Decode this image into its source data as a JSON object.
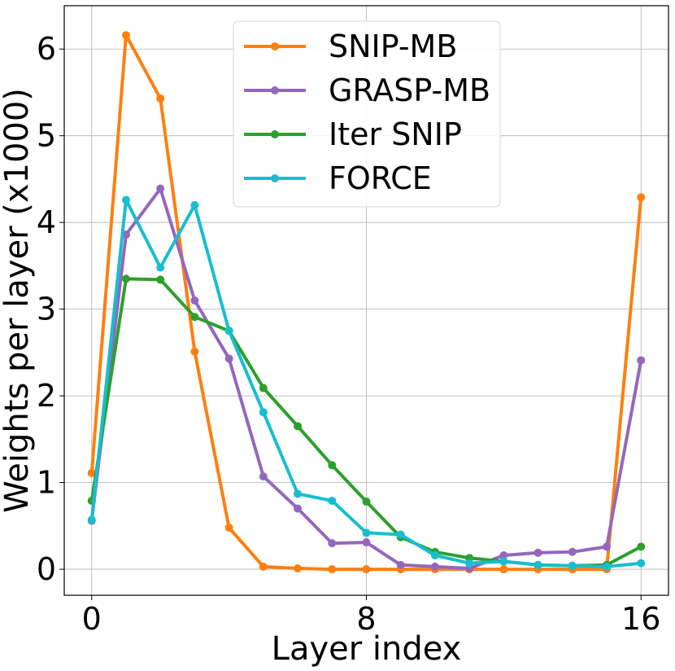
{
  "chart_data": {
    "type": "line",
    "title": "",
    "xlabel": "Layer index",
    "ylabel": "Weights per layer (x1000)",
    "xlim": [
      -0.8,
      16.8
    ],
    "ylim": [
      -0.3,
      6.5
    ],
    "xticks": [
      0,
      8,
      16
    ],
    "yticks": [
      0,
      1,
      2,
      3,
      4,
      5,
      6
    ],
    "grid": true,
    "legend_position": "top-center",
    "x": [
      0,
      1,
      2,
      3,
      4,
      5,
      6,
      7,
      8,
      9,
      10,
      11,
      12,
      13,
      14,
      15,
      16
    ],
    "series": [
      {
        "name": "SNIP-MB",
        "color": "#ff7f0e",
        "values": [
          1.11,
          6.16,
          5.43,
          2.51,
          0.48,
          0.03,
          0.01,
          0.0,
          0.0,
          0.0,
          0.0,
          0.0,
          0.0,
          0.0,
          0.0,
          0.0,
          4.29
        ]
      },
      {
        "name": "GRASP-MB",
        "color": "#9467bd",
        "values": [
          0.56,
          3.86,
          4.39,
          3.1,
          2.43,
          1.07,
          0.7,
          0.3,
          0.31,
          0.05,
          0.03,
          0.01,
          0.16,
          0.19,
          0.2,
          0.26,
          2.41
        ]
      },
      {
        "name": "Iter SNIP",
        "color": "#2ca02c",
        "values": [
          0.79,
          3.35,
          3.34,
          2.91,
          2.75,
          2.09,
          1.65,
          1.2,
          0.78,
          0.37,
          0.2,
          0.13,
          0.09,
          0.05,
          0.04,
          0.05,
          0.26
        ]
      },
      {
        "name": "FORCE",
        "color": "#17becf",
        "values": [
          0.57,
          4.26,
          3.48,
          4.2,
          2.75,
          1.81,
          0.87,
          0.79,
          0.42,
          0.4,
          0.16,
          0.07,
          0.09,
          0.05,
          0.04,
          0.03,
          0.07
        ]
      }
    ]
  }
}
